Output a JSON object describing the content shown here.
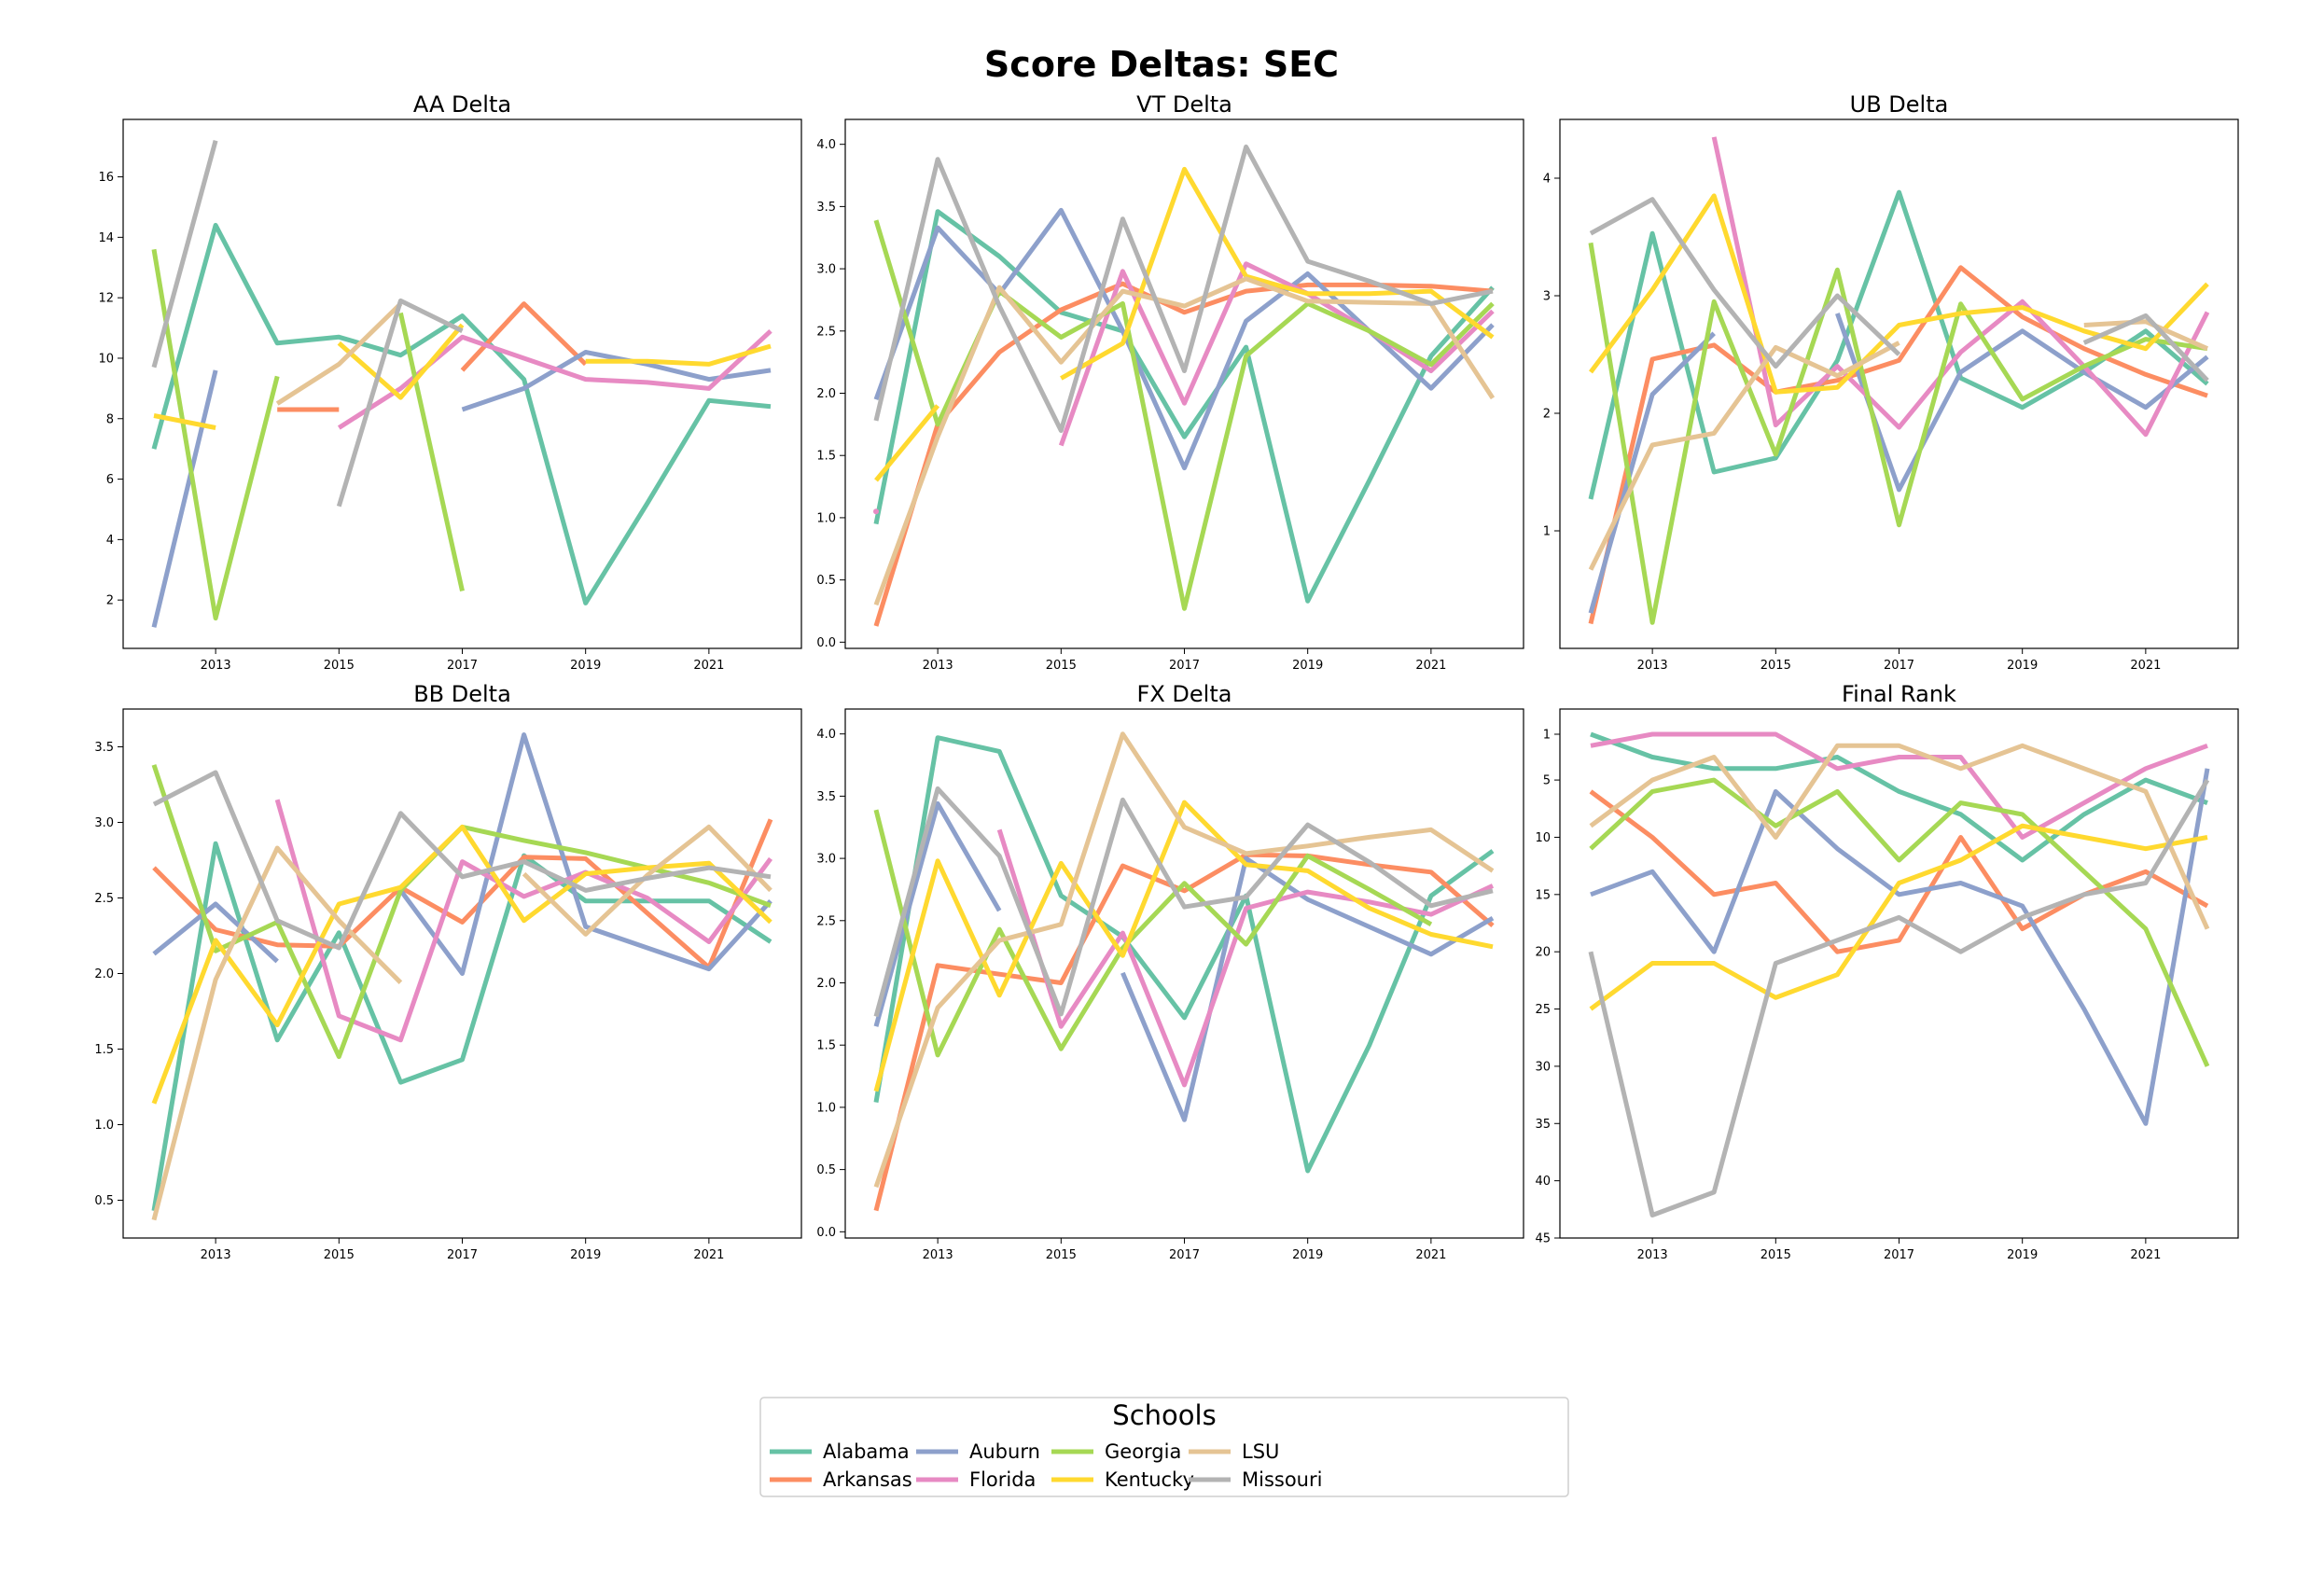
{
  "page": {
    "title": "Score Deltas: SEC"
  },
  "legend": {
    "title": "Schools"
  },
  "colors": {
    "Alabama": "#66c2a5",
    "Arkansas": "#fc8d62",
    "Auburn": "#8da0cb",
    "Florida": "#e78ac3",
    "Georgia": "#a6d854",
    "Kentucky": "#ffd92f",
    "LSU": "#e5c494",
    "Missouri": "#b3b3b3"
  },
  "chart_data": [
    {
      "type": "line",
      "title": "AA Delta",
      "x": [
        2012,
        2013,
        2014,
        2015,
        2016,
        2017,
        2018,
        2019,
        2020,
        2021,
        2022
      ],
      "xticks": [
        2013,
        2015,
        2017,
        2019,
        2021
      ],
      "xlim": [
        2011.5,
        2022.5
      ],
      "yticks": [
        2,
        4,
        6,
        8,
        10,
        12,
        14,
        16
      ],
      "ylim": [
        0.4,
        17.9
      ],
      "yinvert": false,
      "series": [
        {
          "name": "Alabama",
          "values": [
            7.0,
            14.4,
            10.5,
            10.7,
            10.1,
            11.4,
            9.3,
            1.9,
            5.2,
            8.6,
            8.4
          ]
        },
        {
          "name": "Arkansas",
          "values": [
            null,
            null,
            8.3,
            8.3,
            null,
            9.6,
            11.8,
            9.8,
            null,
            null,
            null
          ]
        },
        {
          "name": "Auburn",
          "values": [
            1.1,
            9.6,
            null,
            null,
            null,
            8.3,
            9.0,
            10.2,
            9.8,
            9.3,
            9.6
          ]
        },
        {
          "name": "Florida",
          "values": [
            null,
            null,
            null,
            7.7,
            9.0,
            10.7,
            10.0,
            9.3,
            9.2,
            9.0,
            10.9
          ]
        },
        {
          "name": "Georgia",
          "values": [
            13.6,
            1.4,
            9.4,
            null,
            11.5,
            2.3,
            null,
            null,
            null,
            null,
            null
          ]
        },
        {
          "name": "Kentucky",
          "values": [
            8.1,
            7.7,
            null,
            10.5,
            8.7,
            11.1,
            null,
            9.9,
            9.9,
            9.8,
            10.4
          ]
        },
        {
          "name": "LSU",
          "values": [
            null,
            null,
            8.5,
            9.8,
            11.8,
            null,
            null,
            null,
            null,
            null,
            null
          ]
        },
        {
          "name": "Missouri",
          "values": [
            9.7,
            17.2,
            null,
            5.1,
            11.9,
            10.9,
            null,
            null,
            null,
            null,
            null
          ]
        }
      ]
    },
    {
      "type": "line",
      "title": "VT Delta",
      "x": [
        2012,
        2013,
        2014,
        2015,
        2016,
        2017,
        2018,
        2019,
        2020,
        2021,
        2022
      ],
      "xticks": [
        2013,
        2015,
        2017,
        2019,
        2021
      ],
      "xlim": [
        2011.5,
        2022.5
      ],
      "yticks": [
        0.0,
        0.5,
        1.0,
        1.5,
        2.0,
        2.5,
        3.0,
        3.5,
        4.0
      ],
      "ylim": [
        -0.05,
        4.2
      ],
      "yinvert": false,
      "series": [
        {
          "name": "Alabama",
          "values": [
            0.95,
            3.46,
            3.1,
            2.65,
            2.5,
            1.65,
            2.37,
            0.33,
            1.3,
            2.3,
            2.85
          ]
        },
        {
          "name": "Arkansas",
          "values": [
            0.13,
            1.75,
            2.33,
            2.67,
            2.88,
            2.65,
            2.82,
            2.87,
            2.87,
            2.86,
            2.82
          ]
        },
        {
          "name": "Auburn",
          "values": [
            1.95,
            3.33,
            2.8,
            3.47,
            2.5,
            1.4,
            2.58,
            2.96,
            2.5,
            2.04,
            2.55
          ]
        },
        {
          "name": "Florida",
          "values": [
            1.05,
            null,
            null,
            1.58,
            2.98,
            1.92,
            3.04,
            2.8,
            2.5,
            2.18,
            2.66
          ]
        },
        {
          "name": "Georgia",
          "values": [
            3.39,
            1.75,
            2.82,
            2.45,
            2.72,
            0.27,
            2.3,
            2.72,
            2.5,
            2.23,
            2.72
          ]
        },
        {
          "name": "Kentucky",
          "values": [
            1.3,
            1.9,
            null,
            2.12,
            2.4,
            3.8,
            2.94,
            2.8,
            2.8,
            2.82,
            2.45
          ]
        },
        {
          "name": "LSU",
          "values": [
            0.3,
            1.65,
            2.85,
            2.25,
            2.82,
            2.7,
            2.92,
            2.74,
            2.73,
            2.72,
            1.96
          ]
        },
        {
          "name": "Missouri",
          "values": [
            1.78,
            3.88,
            2.7,
            1.7,
            3.4,
            2.18,
            3.98,
            3.06,
            2.9,
            2.72,
            2.82
          ]
        }
      ]
    },
    {
      "type": "line",
      "title": "UB Delta",
      "x": [
        2012,
        2013,
        2014,
        2015,
        2016,
        2017,
        2018,
        2019,
        2020,
        2021,
        2022
      ],
      "xticks": [
        2013,
        2015,
        2017,
        2019,
        2021
      ],
      "xlim": [
        2011.5,
        2022.5
      ],
      "yticks": [
        1,
        2,
        3,
        4
      ],
      "ylim": [
        0.0,
        4.5
      ],
      "yinvert": false,
      "series": [
        {
          "name": "Alabama",
          "values": [
            1.27,
            3.53,
            1.5,
            1.62,
            2.45,
            3.88,
            2.3,
            2.05,
            2.35,
            2.7,
            2.25
          ]
        },
        {
          "name": "Arkansas",
          "values": [
            0.21,
            2.46,
            2.58,
            2.18,
            2.28,
            2.45,
            3.24,
            2.82,
            2.55,
            2.33,
            2.15
          ]
        },
        {
          "name": "Auburn",
          "values": [
            0.3,
            2.16,
            2.68,
            null,
            2.85,
            1.35,
            2.35,
            2.7,
            2.35,
            2.05,
            2.48
          ]
        },
        {
          "name": "Florida",
          "values": [
            null,
            null,
            4.35,
            1.9,
            2.4,
            1.88,
            2.52,
            2.95,
            2.4,
            1.82,
            2.86
          ]
        },
        {
          "name": "Georgia",
          "values": [
            3.45,
            0.22,
            2.95,
            1.65,
            3.22,
            1.05,
            2.93,
            2.12,
            2.4,
            2.63,
            2.55
          ]
        },
        {
          "name": "Kentucky",
          "values": [
            2.35,
            3.05,
            3.85,
            2.18,
            2.22,
            2.75,
            2.85,
            2.9,
            2.7,
            2.55,
            3.1
          ]
        },
        {
          "name": "LSU",
          "values": [
            0.67,
            1.73,
            1.83,
            2.56,
            2.32,
            2.6,
            null,
            null,
            2.75,
            2.78,
            2.55
          ]
        },
        {
          "name": "Missouri",
          "values": [
            3.53,
            3.82,
            3.05,
            2.4,
            3.0,
            2.5,
            null,
            null,
            2.6,
            2.83,
            2.28
          ]
        }
      ]
    },
    {
      "type": "line",
      "title": "BB Delta",
      "x": [
        2012,
        2013,
        2014,
        2015,
        2016,
        2017,
        2018,
        2019,
        2020,
        2021,
        2022
      ],
      "xticks": [
        2013,
        2015,
        2017,
        2019,
        2021
      ],
      "xlim": [
        2011.5,
        2022.5
      ],
      "yticks": [
        0.5,
        1.0,
        1.5,
        2.0,
        2.5,
        3.0,
        3.5
      ],
      "ylim": [
        0.25,
        3.75
      ],
      "yinvert": false,
      "series": [
        {
          "name": "Alabama",
          "values": [
            0.43,
            2.86,
            1.56,
            2.27,
            1.28,
            1.43,
            2.78,
            2.48,
            2.48,
            2.48,
            2.21
          ]
        },
        {
          "name": "Arkansas",
          "values": [
            2.7,
            2.29,
            2.19,
            2.18,
            2.57,
            2.34,
            2.77,
            2.76,
            2.4,
            2.04,
            3.02
          ]
        },
        {
          "name": "Auburn",
          "values": [
            2.13,
            2.46,
            2.08,
            null,
            2.55,
            2.0,
            3.58,
            2.31,
            2.17,
            2.03,
            2.48
          ]
        },
        {
          "name": "Florida",
          "values": [
            null,
            null,
            3.15,
            1.72,
            1.56,
            2.74,
            2.51,
            2.67,
            2.5,
            2.21,
            2.76
          ]
        },
        {
          "name": "Georgia",
          "values": [
            3.38,
            2.15,
            2.34,
            1.45,
            2.55,
            2.97,
            2.88,
            2.8,
            2.7,
            2.6,
            2.45
          ]
        },
        {
          "name": "Kentucky",
          "values": [
            1.14,
            2.22,
            1.66,
            2.46,
            2.57,
            2.97,
            2.35,
            2.66,
            2.7,
            2.73,
            2.34
          ]
        },
        {
          "name": "LSU",
          "values": [
            0.37,
            1.96,
            2.83,
            2.35,
            1.94,
            null,
            2.66,
            2.26,
            2.65,
            2.97,
            2.55
          ]
        },
        {
          "name": "Missouri",
          "values": [
            3.12,
            3.33,
            2.35,
            2.17,
            3.06,
            2.64,
            2.74,
            2.55,
            2.63,
            2.7,
            2.64
          ]
        }
      ]
    },
    {
      "type": "line",
      "title": "FX Delta",
      "x": [
        2012,
        2013,
        2014,
        2015,
        2016,
        2017,
        2018,
        2019,
        2020,
        2021,
        2022
      ],
      "xticks": [
        2013,
        2015,
        2017,
        2019,
        2021
      ],
      "xlim": [
        2011.5,
        2022.5
      ],
      "yticks": [
        0.0,
        0.5,
        1.0,
        1.5,
        2.0,
        2.5,
        3.0,
        3.5,
        4.0
      ],
      "ylim": [
        -0.05,
        4.2
      ],
      "yinvert": false,
      "series": [
        {
          "name": "Alabama",
          "values": [
            1.04,
            3.97,
            3.86,
            2.7,
            2.37,
            1.72,
            2.7,
            0.49,
            1.5,
            2.7,
            3.06
          ]
        },
        {
          "name": "Arkansas",
          "values": [
            0.17,
            2.14,
            2.07,
            2.0,
            2.94,
            2.74,
            3.03,
            3.02,
            2.95,
            2.89,
            2.46
          ]
        },
        {
          "name": "Auburn",
          "values": [
            1.65,
            3.44,
            2.58,
            null,
            2.08,
            0.9,
            3.0,
            2.67,
            2.45,
            2.23,
            2.52
          ]
        },
        {
          "name": "Florida",
          "values": [
            null,
            null,
            3.23,
            1.65,
            2.4,
            1.18,
            2.6,
            2.73,
            2.65,
            2.55,
            2.78
          ]
        },
        {
          "name": "Georgia",
          "values": [
            3.39,
            1.42,
            2.43,
            1.47,
            2.28,
            2.8,
            2.31,
            3.02,
            2.75,
            2.47,
            null
          ]
        },
        {
          "name": "Kentucky",
          "values": [
            1.13,
            2.98,
            1.9,
            2.96,
            2.22,
            3.45,
            2.95,
            2.9,
            2.6,
            2.39,
            2.29
          ]
        },
        {
          "name": "LSU",
          "values": [
            0.36,
            1.8,
            2.34,
            2.47,
            4.0,
            3.25,
            3.04,
            3.1,
            3.17,
            3.23,
            2.9
          ]
        },
        {
          "name": "Missouri",
          "values": [
            1.73,
            3.56,
            3.02,
            1.75,
            3.47,
            2.61,
            2.69,
            3.27,
            2.97,
            2.62,
            2.74
          ]
        }
      ]
    },
    {
      "type": "line",
      "title": "Final Rank",
      "x": [
        2012,
        2013,
        2014,
        2015,
        2016,
        2017,
        2018,
        2019,
        2020,
        2021,
        2022
      ],
      "xticks": [
        2013,
        2015,
        2017,
        2019,
        2021
      ],
      "xlim": [
        2011.5,
        2022.5
      ],
      "yticks": [
        1,
        5,
        10,
        15,
        20,
        25,
        30,
        35,
        40,
        45
      ],
      "ylim": [
        -1.2,
        45.0
      ],
      "yinvert": true,
      "series": [
        {
          "name": "Alabama",
          "values": [
            1,
            3,
            4,
            4,
            3,
            6,
            8,
            12,
            8,
            5,
            7
          ]
        },
        {
          "name": "Arkansas",
          "values": [
            6,
            10,
            15,
            14,
            20,
            19,
            10,
            18,
            15,
            13,
            16
          ]
        },
        {
          "name": "Auburn",
          "values": [
            15,
            13,
            20,
            6,
            11,
            15,
            14,
            16,
            25,
            35,
            4
          ]
        },
        {
          "name": "Florida",
          "values": [
            2,
            1,
            1,
            1,
            4,
            3,
            3,
            10,
            7,
            4,
            2
          ]
        },
        {
          "name": "Georgia",
          "values": [
            11,
            6,
            5,
            9,
            6,
            12,
            7,
            8,
            13,
            18,
            30
          ]
        },
        {
          "name": "Kentucky",
          "values": [
            25,
            21,
            21,
            24,
            22,
            14,
            12,
            9,
            10,
            11,
            10
          ]
        },
        {
          "name": "LSU",
          "values": [
            9,
            5,
            3,
            10,
            2,
            2,
            4,
            2,
            4,
            6,
            18
          ]
        },
        {
          "name": "Missouri",
          "values": [
            20,
            43,
            41,
            21,
            19,
            17,
            20,
            17,
            15,
            14,
            5
          ]
        }
      ]
    }
  ]
}
